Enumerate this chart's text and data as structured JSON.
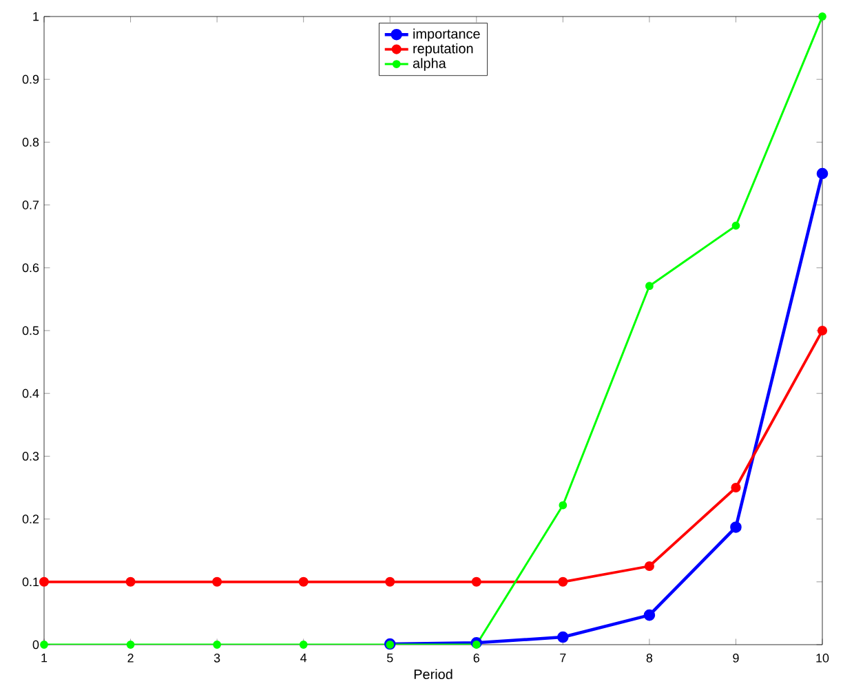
{
  "chart_data": {
    "type": "line",
    "xlabel": "Period",
    "x": [
      1,
      2,
      3,
      4,
      5,
      6,
      7,
      8,
      9,
      10
    ],
    "series": [
      {
        "name": "importance",
        "color": "#0000ff",
        "values": [
          null,
          null,
          null,
          null,
          0.001,
          0.003,
          0.012,
          0.047,
          0.187,
          0.75
        ]
      },
      {
        "name": "reputation",
        "color": "#ff0000",
        "values": [
          0.1,
          0.1,
          0.1,
          0.1,
          0.1,
          0.1,
          0.1,
          0.125,
          0.25,
          0.5
        ]
      },
      {
        "name": "alpha",
        "color": "#00ff00",
        "values": [
          0,
          0,
          0,
          0,
          0,
          0,
          0.222,
          0.571,
          0.667,
          1
        ]
      }
    ],
    "xlim": [
      1,
      10
    ],
    "ylim": [
      0,
      1
    ],
    "xticks": [
      1,
      2,
      3,
      4,
      5,
      6,
      7,
      8,
      9,
      10
    ],
    "yticks": [
      0,
      0.1,
      0.2,
      0.3,
      0.4,
      0.5,
      0.6,
      0.7,
      0.8,
      0.9,
      1
    ],
    "legend": "top",
    "marker": "circle",
    "line_style": "solid",
    "grid": false
  }
}
